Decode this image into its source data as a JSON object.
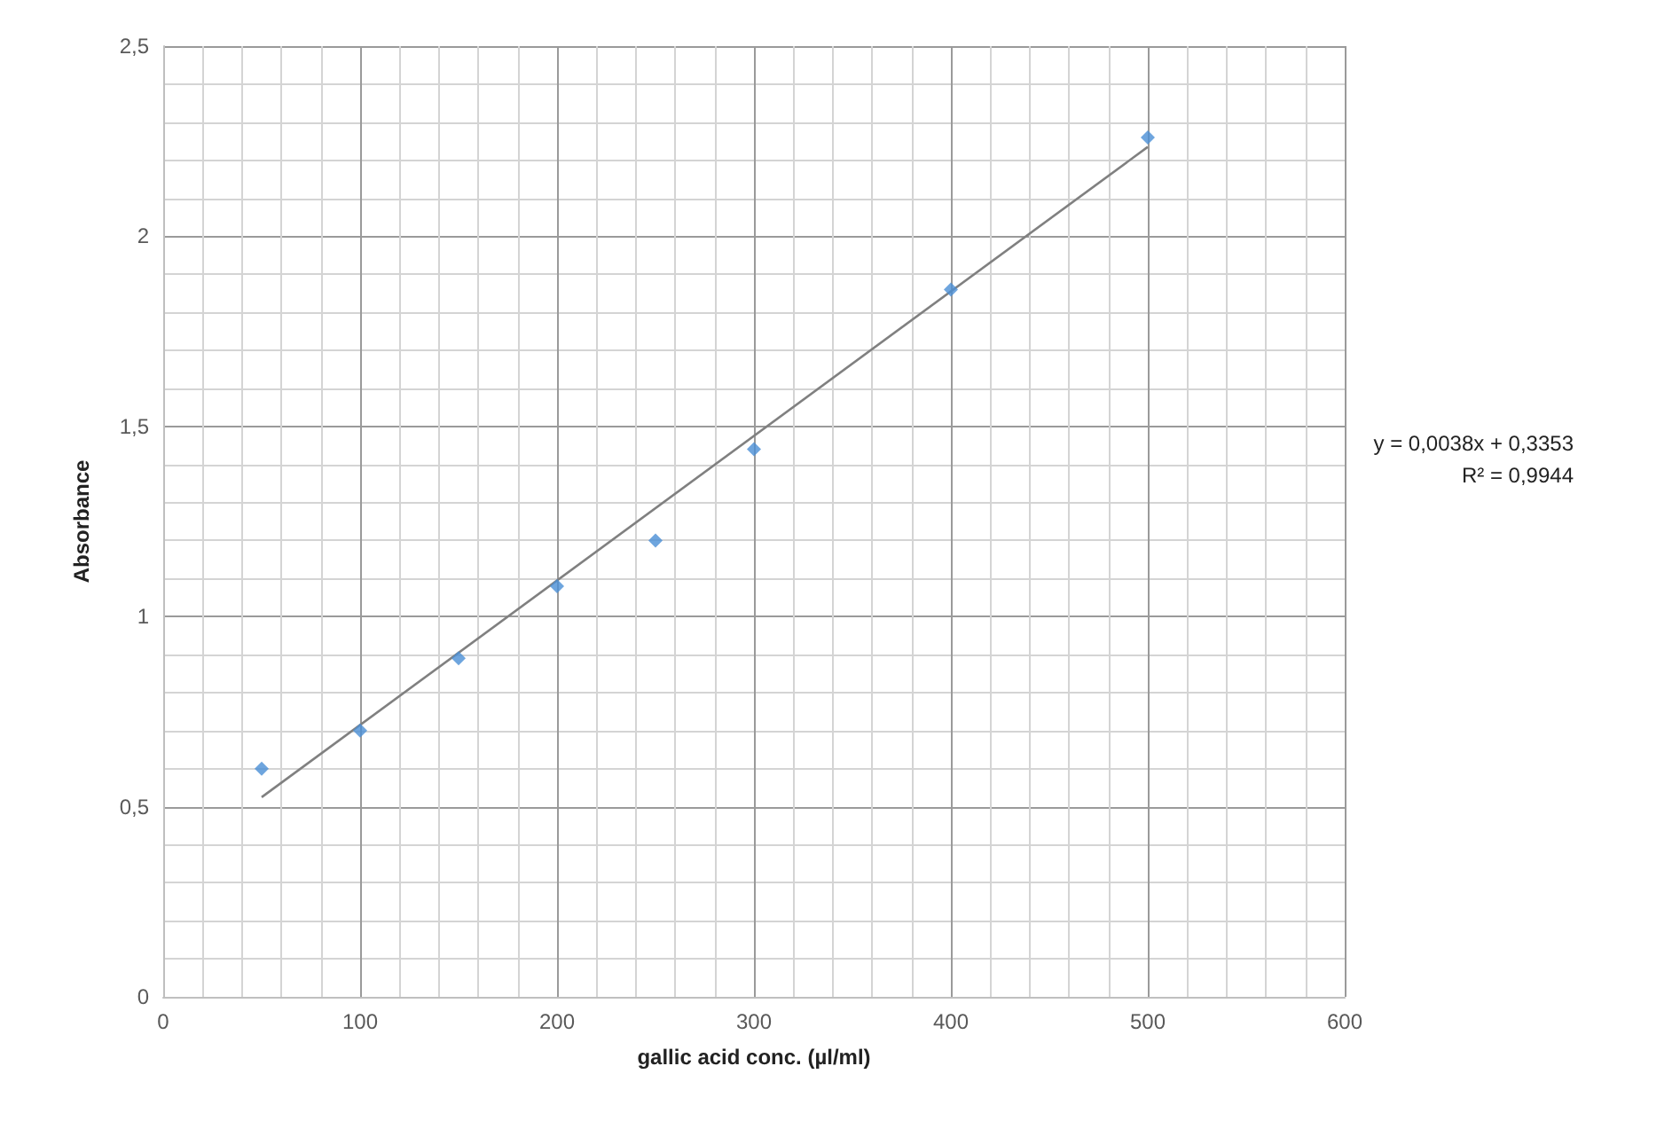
{
  "chart_data": {
    "type": "scatter",
    "xlabel": "gallic acid conc. (µl/ml)",
    "ylabel": "Absorbance",
    "series": [
      {
        "color": "#4a8fd6",
        "marker": "diamond",
        "x": [
          50,
          100,
          150,
          200,
          250,
          300,
          400,
          500
        ],
        "values": [
          0.6,
          0.7,
          0.89,
          1.08,
          1.2,
          1.44,
          1.86,
          2.26
        ]
      },
      {
        "type": "line",
        "color": "#808080",
        "marker": "none",
        "x": [
          50,
          500
        ],
        "values": [
          0.525,
          2.235
        ]
      }
    ],
    "xlim": [
      0,
      600
    ],
    "xticks": [
      0,
      100,
      200,
      300,
      400,
      500,
      600
    ],
    "ylim": [
      0,
      2.5
    ],
    "yticks": [
      0,
      {
        "value": 0.5,
        "label": "0,5"
      },
      1,
      {
        "value": 1.5,
        "label": "1,5"
      },
      2,
      {
        "value": 2.5,
        "label": "2,5"
      }
    ],
    "grid": true,
    "annotations": [
      "y = 0,0038x + 0,3353",
      "R² = 0,9944"
    ]
  }
}
